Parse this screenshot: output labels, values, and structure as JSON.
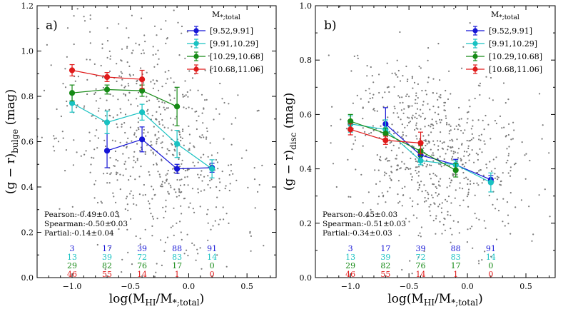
{
  "colors": {
    "blue": "#1515d6",
    "cyan": "#19c2c2",
    "green": "#168a16",
    "red": "#e01b1b",
    "scatter": "#7a7a7a"
  },
  "legend_title": "M*;total",
  "chart_data": [
    {
      "type": "line",
      "panel_label": "a)",
      "xlabel": "log(M_HI/M*;total)",
      "ylabel": "(g − r)_bulge (mag)",
      "xlim": [
        -1.3,
        0.75
      ],
      "ylim": [
        0.0,
        1.2
      ],
      "xticks": [
        -1.0,
        -0.5,
        0.0,
        0.5
      ],
      "xtick_labels": [
        "−1.0",
        "−0.5",
        "0.0",
        "0.5"
      ],
      "yticks": [
        0.0,
        0.2,
        0.4,
        0.6,
        0.8,
        1.0,
        1.2
      ],
      "ytick_labels": [
        "0.0",
        "0.2",
        "0.4",
        "0.6",
        "0.8",
        "1.0",
        "1.2"
      ],
      "x": [
        -1.0,
        -0.7,
        -0.4,
        -0.1,
        0.2
      ],
      "series": [
        {
          "name": "[9.52,9.91]",
          "color_key": "blue",
          "points": [
            [
              -0.7,
              0.56,
              0.075
            ],
            [
              -0.4,
              0.61,
              0.055
            ],
            [
              -0.1,
              0.48,
              0.02
            ],
            [
              0.2,
              0.485,
              0.02
            ]
          ]
        },
        {
          "name": "[9.91,10.29]",
          "color_key": "cyan",
          "points": [
            [
              -1.0,
              0.77,
              0.04
            ],
            [
              -0.7,
              0.685,
              0.05
            ],
            [
              -0.4,
              0.73,
              0.035
            ],
            [
              -0.1,
              0.59,
              0.06
            ],
            [
              0.2,
              0.48,
              0.04
            ]
          ]
        },
        {
          "name": "[10.29,10.68]",
          "color_key": "green",
          "points": [
            [
              -1.0,
              0.815,
              0.035
            ],
            [
              -0.7,
              0.83,
              0.02
            ],
            [
              -0.4,
              0.825,
              0.025
            ],
            [
              -0.1,
              0.755,
              0.085
            ]
          ]
        },
        {
          "name": "[10.68,11.06]",
          "color_key": "red",
          "points": [
            [
              -1.0,
              0.915,
              0.025
            ],
            [
              -0.7,
              0.885,
              0.02
            ],
            [
              -0.4,
              0.875,
              0.04
            ]
          ]
        }
      ],
      "stats": {
        "pearson": "Pearson:-0.49±0.03",
        "spearman": "Spearman:-0.50±0.03",
        "partial": "Partial:-0.14±0.04"
      },
      "counts": [
        {
          "color_key": "blue",
          "values": [
            "3",
            "17",
            "39",
            "88",
            "91"
          ]
        },
        {
          "color_key": "cyan",
          "values": [
            "13",
            "39",
            "72",
            "83",
            "14"
          ]
        },
        {
          "color_key": "green",
          "values": [
            "29",
            "82",
            "76",
            "17",
            "0"
          ]
        },
        {
          "color_key": "red",
          "values": [
            "46",
            "55",
            "14",
            "1",
            "0"
          ]
        }
      ],
      "scatter": {
        "n": 700,
        "x_mean": -0.3,
        "x_sd": 0.38,
        "y_mean": 0.62,
        "y_sd": 0.27,
        "slope": -0.2,
        "seed": 11
      }
    },
    {
      "type": "line",
      "panel_label": "b)",
      "xlabel": "log(M_HI/M*;total)",
      "ylabel": "(g − r)_disc (mag)",
      "xlim": [
        -1.3,
        0.75
      ],
      "ylim": [
        0.0,
        1.0
      ],
      "xticks": [
        -1.0,
        -0.5,
        0.0,
        0.5
      ],
      "xtick_labels": [
        "−1.0",
        "−0.5",
        "0.0",
        "0.5"
      ],
      "yticks": [
        0.0,
        0.2,
        0.4,
        0.6,
        0.8,
        1.0
      ],
      "ytick_labels": [
        "0.0",
        "0.2",
        "0.4",
        "0.6",
        "0.8",
        "1.0"
      ],
      "x": [
        -1.0,
        -0.7,
        -0.4,
        -0.1,
        0.2
      ],
      "series": [
        {
          "name": "[9.52,9.91]",
          "color_key": "blue",
          "points": [
            [
              -0.7,
              0.565,
              0.06
            ],
            [
              -0.4,
              0.45,
              0.02
            ],
            [
              -0.1,
              0.415,
              0.02
            ],
            [
              0.2,
              0.36,
              0.015
            ]
          ]
        },
        {
          "name": "[9.91,10.29]",
          "color_key": "cyan",
          "points": [
            [
              -1.0,
              0.565,
              0.03
            ],
            [
              -0.7,
              0.545,
              0.035
            ],
            [
              -0.4,
              0.43,
              0.015
            ],
            [
              -0.1,
              0.415,
              0.015
            ],
            [
              0.2,
              0.35,
              0.035
            ]
          ]
        },
        {
          "name": "[10.29,10.68]",
          "color_key": "green",
          "points": [
            [
              -1.0,
              0.575,
              0.025
            ],
            [
              -0.7,
              0.53,
              0.02
            ],
            [
              -0.4,
              0.465,
              0.02
            ],
            [
              -0.1,
              0.395,
              0.025
            ]
          ]
        },
        {
          "name": "[10.68,11.06]",
          "color_key": "red",
          "points": [
            [
              -1.0,
              0.545,
              0.02
            ],
            [
              -0.7,
              0.505,
              0.015
            ],
            [
              -0.4,
              0.495,
              0.04
            ]
          ]
        }
      ],
      "stats": {
        "pearson": "Pearson:-0.45±0.03",
        "spearman": "Spearman:-0.51±0.03",
        "partial": "Partial:-0.34±0.03"
      },
      "counts": [
        {
          "color_key": "blue",
          "values": [
            "3",
            "17",
            "39",
            "88",
            "91"
          ]
        },
        {
          "color_key": "cyan",
          "values": [
            "13",
            "39",
            "72",
            "83",
            "14"
          ]
        },
        {
          "color_key": "green",
          "values": [
            "29",
            "82",
            "76",
            "17",
            "0"
          ]
        },
        {
          "color_key": "red",
          "values": [
            "46",
            "55",
            "14",
            "1",
            "0"
          ]
        }
      ],
      "scatter": {
        "n": 700,
        "x_mean": -0.3,
        "x_sd": 0.38,
        "y_mean": 0.47,
        "y_sd": 0.16,
        "slope": -0.15,
        "seed": 29
      }
    }
  ]
}
